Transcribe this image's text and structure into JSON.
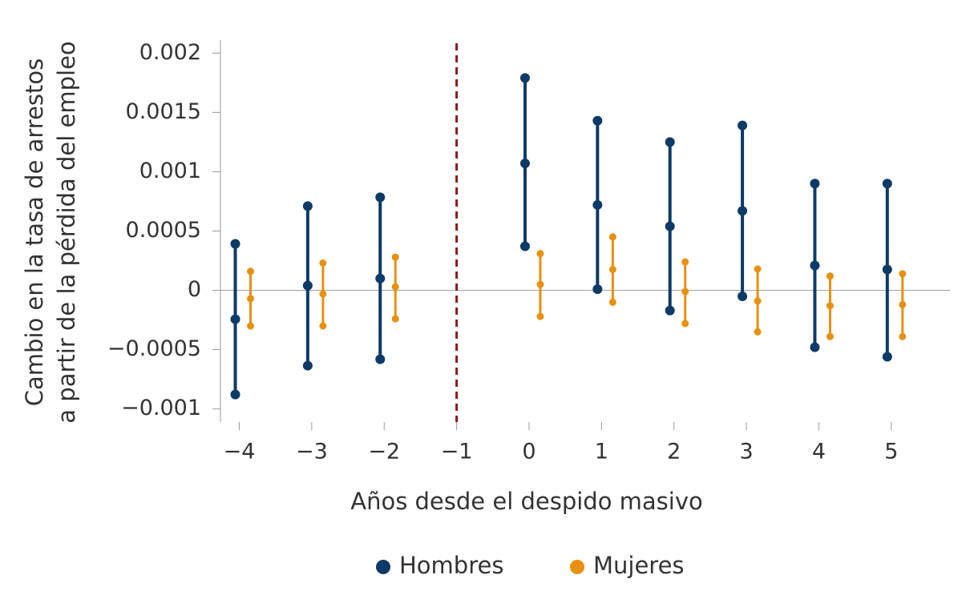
{
  "chart_data": {
    "type": "errorbar",
    "x_label": "Años desde el despido masivo",
    "y_label": [
      "Cambio en la tasa de arrestos",
      "a partir de la pérdida del empleo"
    ],
    "x": [
      -4,
      -3,
      -2,
      0,
      1,
      2,
      3,
      4,
      5
    ],
    "series": [
      {
        "name": "Hombres",
        "color": "#0d3a66",
        "values": [
          -0.000243,
          4e-05,
          0.0001,
          0.00107,
          0.00072,
          0.00054,
          0.00067,
          0.00021,
          0.000176
        ],
        "low": [
          -0.000878,
          -0.000635,
          -0.000581,
          0.000372,
          1e-05,
          -0.00017,
          -5e-05,
          -0.00048,
          -0.00056
        ],
        "high": [
          0.000392,
          0.00071,
          0.000784,
          0.00179,
          0.00143,
          0.00125,
          0.00139,
          0.0009,
          0.0009
        ]
      },
      {
        "name": "Mujeres",
        "color": "#e8900f",
        "values": [
          -7e-05,
          -3e-05,
          3e-05,
          5e-05,
          0.000176,
          -1e-05,
          -9e-05,
          -0.00013,
          -0.00012
        ],
        "low": [
          -0.0003,
          -0.0003,
          -0.00024,
          -0.00022,
          -0.0001,
          -0.00028,
          -0.00035,
          -0.00039,
          -0.00039
        ],
        "high": [
          0.00016,
          0.00023,
          0.00028,
          0.00031,
          0.00045,
          0.00024,
          0.00018,
          0.00012,
          0.00014
        ]
      }
    ],
    "vline": -1,
    "vline_color": "#8b1a1a",
    "xlim": [
      -4.26,
      5.81
    ],
    "xticks": [
      {
        "value": -4,
        "label": "−4"
      },
      {
        "value": -3,
        "label": "−3"
      },
      {
        "value": -2,
        "label": "−2"
      },
      {
        "value": -1,
        "label": "−1"
      },
      0,
      1,
      2,
      3,
      4,
      5
    ],
    "ylim": [
      -0.00111,
      0.00211
    ],
    "yticks": [
      {
        "value": -0.001,
        "label": "−0.001"
      },
      {
        "value": -0.0005,
        "label": "−0.0005"
      },
      0,
      0.0005,
      0.001,
      0.0015,
      0.002
    ],
    "legend": "bottom"
  }
}
